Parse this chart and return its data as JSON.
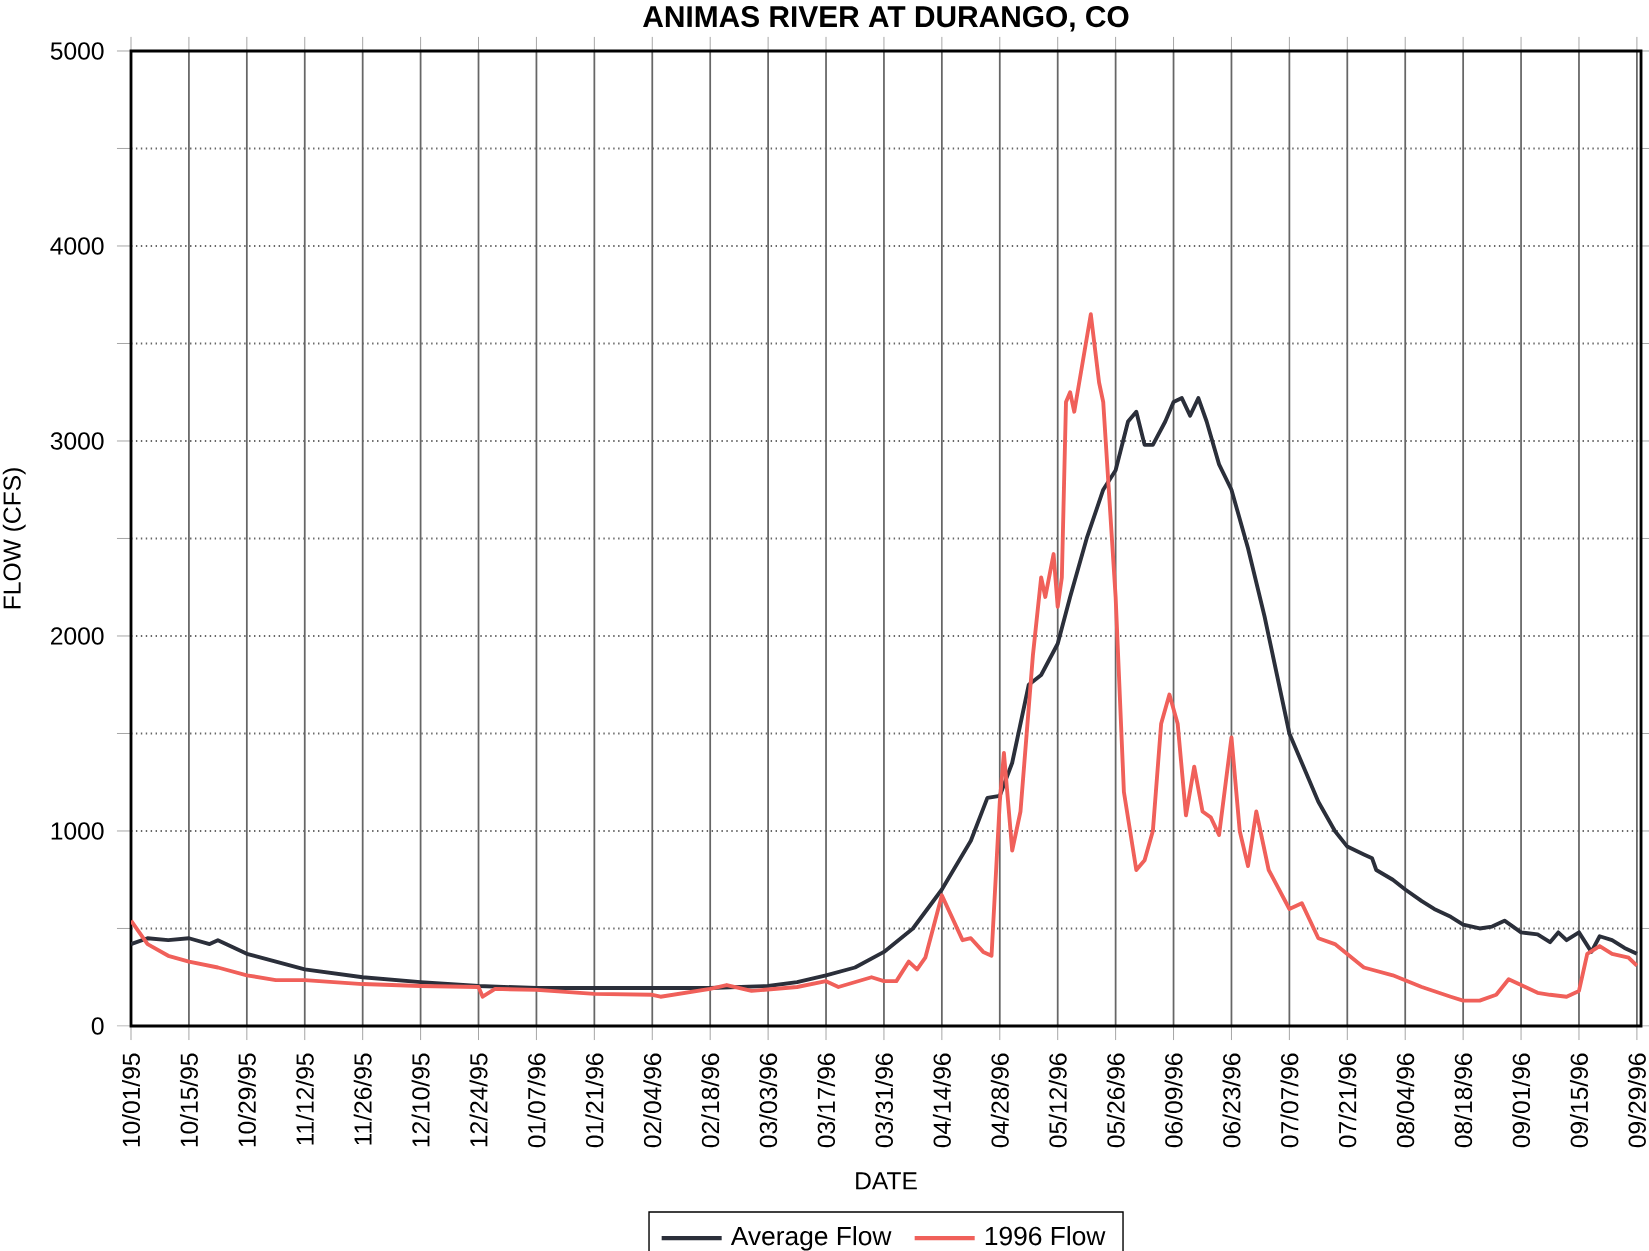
{
  "chart_data": {
    "type": "line",
    "title": "ANIMAS RIVER AT DURANGO, CO",
    "xlabel": "DATE",
    "ylabel": "FLOW (CFS)",
    "xlim": [
      "1995-10-01",
      "1996-09-30"
    ],
    "xticks": [
      {
        "value": "1995-10-01",
        "label": "10/01/95"
      },
      {
        "value": "1995-10-15",
        "label": "10/15/95"
      },
      {
        "value": "1995-10-29",
        "label": "10/29/95"
      },
      {
        "value": "1995-11-12",
        "label": "11/12/95"
      },
      {
        "value": "1995-11-26",
        "label": "11/26/95"
      },
      {
        "value": "1995-12-10",
        "label": "12/10/95"
      },
      {
        "value": "1995-12-24",
        "label": "12/24/95"
      },
      {
        "value": "1996-01-07",
        "label": "01/07/96"
      },
      {
        "value": "1996-01-21",
        "label": "01/21/96"
      },
      {
        "value": "1996-02-04",
        "label": "02/04/96"
      },
      {
        "value": "1996-02-18",
        "label": "02/18/96"
      },
      {
        "value": "1996-03-03",
        "label": "03/03/96"
      },
      {
        "value": "1996-03-17",
        "label": "03/17/96"
      },
      {
        "value": "1996-03-31",
        "label": "03/31/96"
      },
      {
        "value": "1996-04-14",
        "label": "04/14/96"
      },
      {
        "value": "1996-04-28",
        "label": "04/28/96"
      },
      {
        "value": "1996-05-12",
        "label": "05/12/96"
      },
      {
        "value": "1996-05-26",
        "label": "05/26/96"
      },
      {
        "value": "1996-06-09",
        "label": "06/09/96"
      },
      {
        "value": "1996-06-23",
        "label": "06/23/96"
      },
      {
        "value": "1996-07-07",
        "label": "07/07/96"
      },
      {
        "value": "1996-07-21",
        "label": "07/21/96"
      },
      {
        "value": "1996-08-04",
        "label": "08/04/96"
      },
      {
        "value": "1996-08-18",
        "label": "08/18/96"
      },
      {
        "value": "1996-09-01",
        "label": "09/01/96"
      },
      {
        "value": "1996-09-15",
        "label": "09/15/96"
      },
      {
        "value": "1996-09-29",
        "label": "09/29/96"
      }
    ],
    "ylim": [
      0,
      5000
    ],
    "yticks": [
      0,
      {
        "value": 500,
        "label": null
      },
      1000,
      {
        "value": 1500,
        "label": null
      },
      2000,
      {
        "value": 2500,
        "label": null
      },
      3000,
      {
        "value": 3500,
        "label": null
      },
      4000,
      {
        "value": 4500,
        "label": null
      },
      5000
    ],
    "grid": true,
    "legend": "bottom",
    "marker": "none",
    "line_style": "solid",
    "series": [
      {
        "name": "Average Flow",
        "color": "#2b2f3a",
        "x": [
          "1995-10-01",
          "1995-10-05",
          "1995-10-10",
          "1995-10-15",
          "1995-10-20",
          "1995-10-22",
          "1995-10-29",
          "1995-11-12",
          "1995-11-26",
          "1995-12-10",
          "1995-12-24",
          "1996-01-07",
          "1996-01-21",
          "1996-02-04",
          "1996-02-18",
          "1996-03-03",
          "1996-03-10",
          "1996-03-17",
          "1996-03-24",
          "1996-03-31",
          "1996-04-07",
          "1996-04-14",
          "1996-04-21",
          "1996-04-25",
          "1996-04-28",
          "1996-05-01",
          "1996-05-05",
          "1996-05-08",
          "1996-05-12",
          "1996-05-15",
          "1996-05-19",
          "1996-05-23",
          "1996-05-26",
          "1996-05-29",
          "1996-05-31",
          "1996-06-02",
          "1996-06-04",
          "1996-06-07",
          "1996-06-09",
          "1996-06-11",
          "1996-06-13",
          "1996-06-15",
          "1996-06-17",
          "1996-06-20",
          "1996-06-23",
          "1996-06-27",
          "1996-07-01",
          "1996-07-04",
          "1996-07-07",
          "1996-07-11",
          "1996-07-14",
          "1996-07-18",
          "1996-07-21",
          "1996-07-25",
          "1996-07-27",
          "1996-07-28",
          "1996-08-01",
          "1996-08-04",
          "1996-08-08",
          "1996-08-11",
          "1996-08-15",
          "1996-08-18",
          "1996-08-22",
          "1996-08-25",
          "1996-08-28",
          "1996-09-01",
          "1996-09-05",
          "1996-09-08",
          "1996-09-10",
          "1996-09-12",
          "1996-09-15",
          "1996-09-18",
          "1996-09-20",
          "1996-09-23",
          "1996-09-26",
          "1996-09-29"
        ],
        "values": [
          420,
          450,
          440,
          450,
          420,
          440,
          370,
          290,
          250,
          225,
          205,
          195,
          195,
          195,
          195,
          205,
          225,
          260,
          300,
          380,
          500,
          700,
          950,
          1170,
          1180,
          1350,
          1750,
          1800,
          1960,
          2200,
          2500,
          2750,
          2850,
          3100,
          3150,
          2980,
          2980,
          3100,
          3200,
          3220,
          3130,
          3220,
          3100,
          2880,
          2750,
          2450,
          2100,
          1800,
          1500,
          1300,
          1150,
          1000,
          920,
          880,
          860,
          800,
          750,
          700,
          640,
          600,
          560,
          520,
          500,
          510,
          540,
          480,
          470,
          430,
          480,
          440,
          480,
          380,
          460,
          440,
          400,
          370
        ]
      },
      {
        "name": "1996 Flow",
        "color": "#f0605a",
        "x": [
          "1995-10-01",
          "1995-10-05",
          "1995-10-10",
          "1995-10-15",
          "1995-10-22",
          "1995-10-29",
          "1995-11-05",
          "1995-11-12",
          "1995-11-26",
          "1995-12-10",
          "1995-12-24",
          "1995-12-25",
          "1995-12-28",
          "1996-01-07",
          "1996-01-21",
          "1996-02-04",
          "1996-02-06",
          "1996-02-18",
          "1996-02-22",
          "1996-02-28",
          "1996-03-10",
          "1996-03-17",
          "1996-03-20",
          "1996-03-28",
          "1996-03-31",
          "1996-04-03",
          "1996-04-06",
          "1996-04-08",
          "1996-04-10",
          "1996-04-14",
          "1996-04-19",
          "1996-04-21",
          "1996-04-24",
          "1996-04-26",
          "1996-04-28",
          "1996-04-29",
          "1996-05-01",
          "1996-05-03",
          "1996-05-06",
          "1996-05-08",
          "1996-05-09",
          "1996-05-11",
          "1996-05-12",
          "1996-05-13",
          "1996-05-14",
          "1996-05-15",
          "1996-05-16",
          "1996-05-18",
          "1996-05-20",
          "1996-05-22",
          "1996-05-23",
          "1996-05-26",
          "1996-05-28",
          "1996-05-31",
          "1996-06-02",
          "1996-06-04",
          "1996-06-06",
          "1996-06-08",
          "1996-06-10",
          "1996-06-12",
          "1996-06-14",
          "1996-06-16",
          "1996-06-18",
          "1996-06-20",
          "1996-06-23",
          "1996-06-25",
          "1996-06-27",
          "1996-06-29",
          "1996-07-02",
          "1996-07-07",
          "1996-07-10",
          "1996-07-14",
          "1996-07-18",
          "1996-07-25",
          "1996-08-01",
          "1996-08-08",
          "1996-08-15",
          "1996-08-18",
          "1996-08-22",
          "1996-08-26",
          "1996-08-29",
          "1996-09-01",
          "1996-09-05",
          "1996-09-08",
          "1996-09-12",
          "1996-09-15",
          "1996-09-17",
          "1996-09-20",
          "1996-09-23",
          "1996-09-27",
          "1996-09-29"
        ],
        "values": [
          540,
          420,
          360,
          330,
          300,
          260,
          235,
          235,
          215,
          205,
          200,
          150,
          190,
          185,
          165,
          160,
          150,
          190,
          210,
          180,
          200,
          230,
          200,
          250,
          230,
          230,
          330,
          290,
          350,
          670,
          440,
          450,
          380,
          360,
          1150,
          1400,
          900,
          1100,
          1900,
          2300,
          2200,
          2420,
          2150,
          2300,
          3200,
          3250,
          3150,
          3400,
          3650,
          3300,
          3200,
          2200,
          1200,
          800,
          850,
          1000,
          1550,
          1700,
          1550,
          1080,
          1330,
          1100,
          1070,
          980,
          1480,
          1000,
          820,
          1100,
          800,
          600,
          630,
          450,
          420,
          300,
          260,
          200,
          150,
          130,
          130,
          160,
          240,
          210,
          170,
          160,
          150,
          180,
          370,
          410,
          370,
          350,
          310
        ]
      }
    ]
  }
}
